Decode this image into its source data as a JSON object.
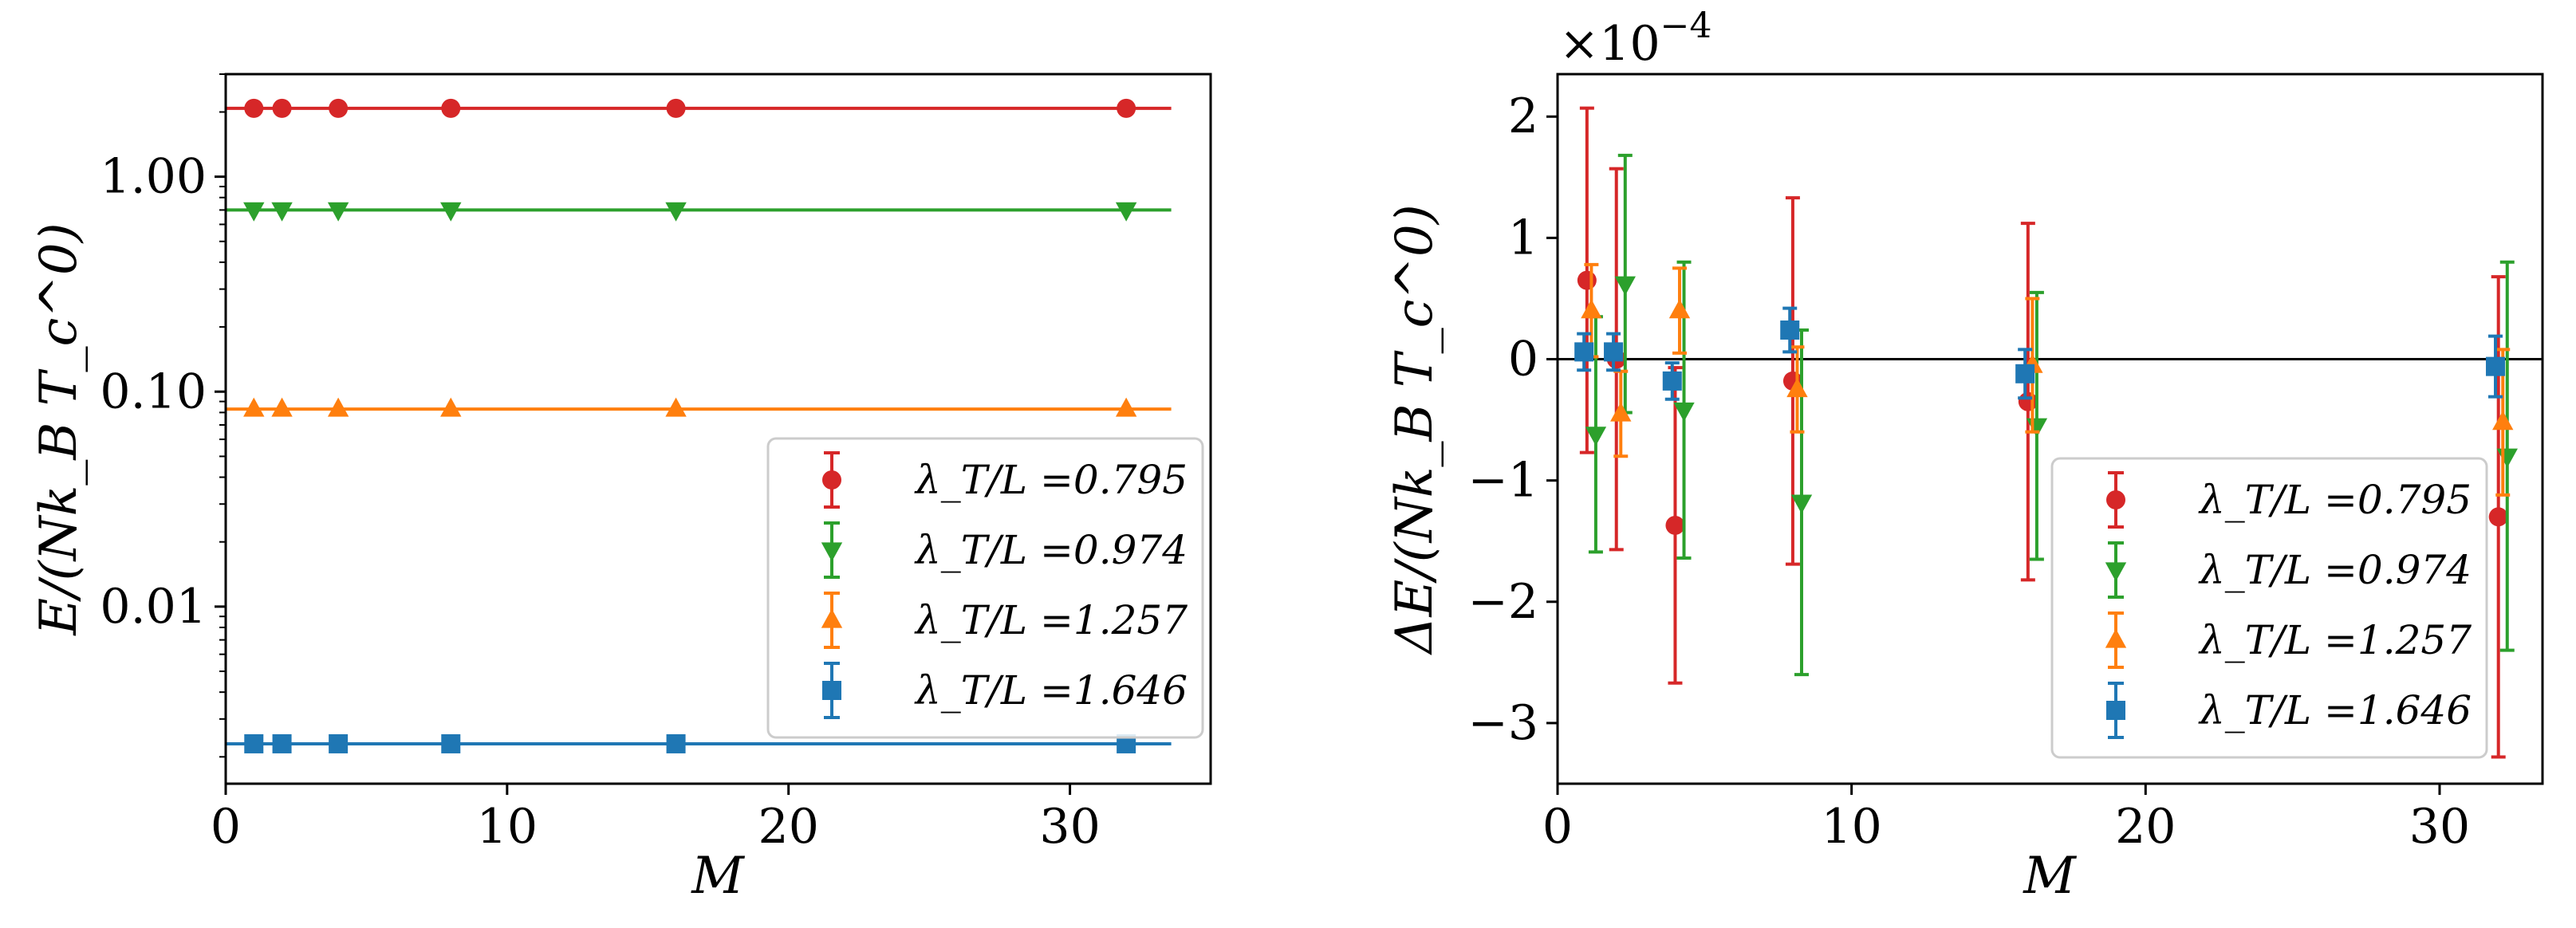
{
  "chart_data": [
    {
      "type": "line",
      "yscale": "log",
      "xlabel": "M",
      "ylabel": "E/(Nk_B T_c^0)",
      "xlim": [
        0,
        35
      ],
      "ylim": [
        0.0015,
        3.0
      ],
      "xticks": [
        0,
        10,
        20,
        30
      ],
      "xtick_labels": [
        "0",
        "10",
        "20",
        "30"
      ],
      "yticks": [
        0.01,
        0.1,
        1.0
      ],
      "ytick_labels": [
        "0.01",
        "0.10",
        "1.00"
      ],
      "legend_position": "lower-right",
      "x": [
        1,
        2,
        4,
        8,
        16,
        32
      ],
      "fit_x_range": [
        0,
        33.6
      ],
      "series": [
        {
          "name": "λ_T/L =0.795",
          "label_text": "=0.795",
          "color": "#d62728",
          "marker": "circle",
          "values": [
            2.08,
            2.08,
            2.08,
            2.08,
            2.08,
            2.08
          ],
          "fit": 2.08
        },
        {
          "name": "λ_T/L =0.974",
          "label_text": "=0.974",
          "color": "#2ca02c",
          "marker": "triangle-down",
          "values": [
            0.7,
            0.7,
            0.7,
            0.7,
            0.7,
            0.7
          ],
          "fit": 0.7
        },
        {
          "name": "λ_T/L =1.257",
          "label_text": "=1.257",
          "color": "#ff7f0e",
          "marker": "triangle-up",
          "values": [
            0.083,
            0.083,
            0.083,
            0.083,
            0.083,
            0.083
          ],
          "fit": 0.083
        },
        {
          "name": "λ_T/L =1.646",
          "label_text": "=1.646",
          "color": "#1f77b4",
          "marker": "square",
          "values": [
            0.0023,
            0.0023,
            0.0023,
            0.0023,
            0.0023,
            0.0023
          ],
          "fit": 0.0023
        }
      ]
    },
    {
      "type": "scatter",
      "xlabel": "M",
      "ylabel": "ΔE/(Nk_B T_c^0)",
      "y_offset_label": "×10",
      "y_offset_exponent": "−4",
      "xlim": [
        0,
        33.5
      ],
      "ylim": [
        -3.5,
        2.35
      ],
      "xticks": [
        0,
        10,
        20,
        30
      ],
      "xtick_labels": [
        "0",
        "10",
        "20",
        "30"
      ],
      "yticks": [
        -3,
        -2,
        -1,
        0,
        1,
        2
      ],
      "ytick_labels": [
        "−3",
        "−2",
        "−1",
        "0",
        "1",
        "2"
      ],
      "hline_y": 0,
      "legend_position": "lower-right",
      "x": [
        1,
        2,
        4,
        8,
        16,
        32
      ],
      "series": [
        {
          "name": "λ_T/L =0.795",
          "label_text": "=0.795",
          "color": "#d62728",
          "marker": "circle",
          "x_shift": 0,
          "values": [
            0.65,
            0.0,
            -1.37,
            -0.18,
            -0.35,
            -1.3
          ],
          "errors": [
            1.42,
            1.57,
            1.3,
            1.51,
            1.47,
            1.98
          ]
        },
        {
          "name": "λ_T/L =0.974",
          "label_text": "=0.974",
          "color": "#2ca02c",
          "marker": "triangle-down",
          "x_shift": 0.3,
          "values": [
            -0.62,
            0.62,
            -0.42,
            -1.18,
            -0.55,
            -0.8
          ],
          "errors": [
            0.97,
            1.06,
            1.22,
            1.42,
            1.1,
            1.6
          ]
        },
        {
          "name": "λ_T/L =1.257",
          "label_text": "=1.257",
          "color": "#ff7f0e",
          "marker": "triangle-up",
          "x_shift": 0.15,
          "values": [
            0.4,
            -0.45,
            0.4,
            -0.25,
            -0.05,
            -0.52
          ],
          "errors": [
            0.38,
            0.35,
            0.35,
            0.35,
            0.55,
            0.6
          ]
        },
        {
          "name": "λ_T/L =1.646",
          "label_text": "=1.646",
          "color": "#1f77b4",
          "marker": "square",
          "x_shift": -0.1,
          "values": [
            0.06,
            0.06,
            -0.18,
            0.24,
            -0.12,
            -0.06
          ],
          "errors": [
            0.15,
            0.15,
            0.15,
            0.18,
            0.2,
            0.25
          ]
        }
      ]
    }
  ]
}
